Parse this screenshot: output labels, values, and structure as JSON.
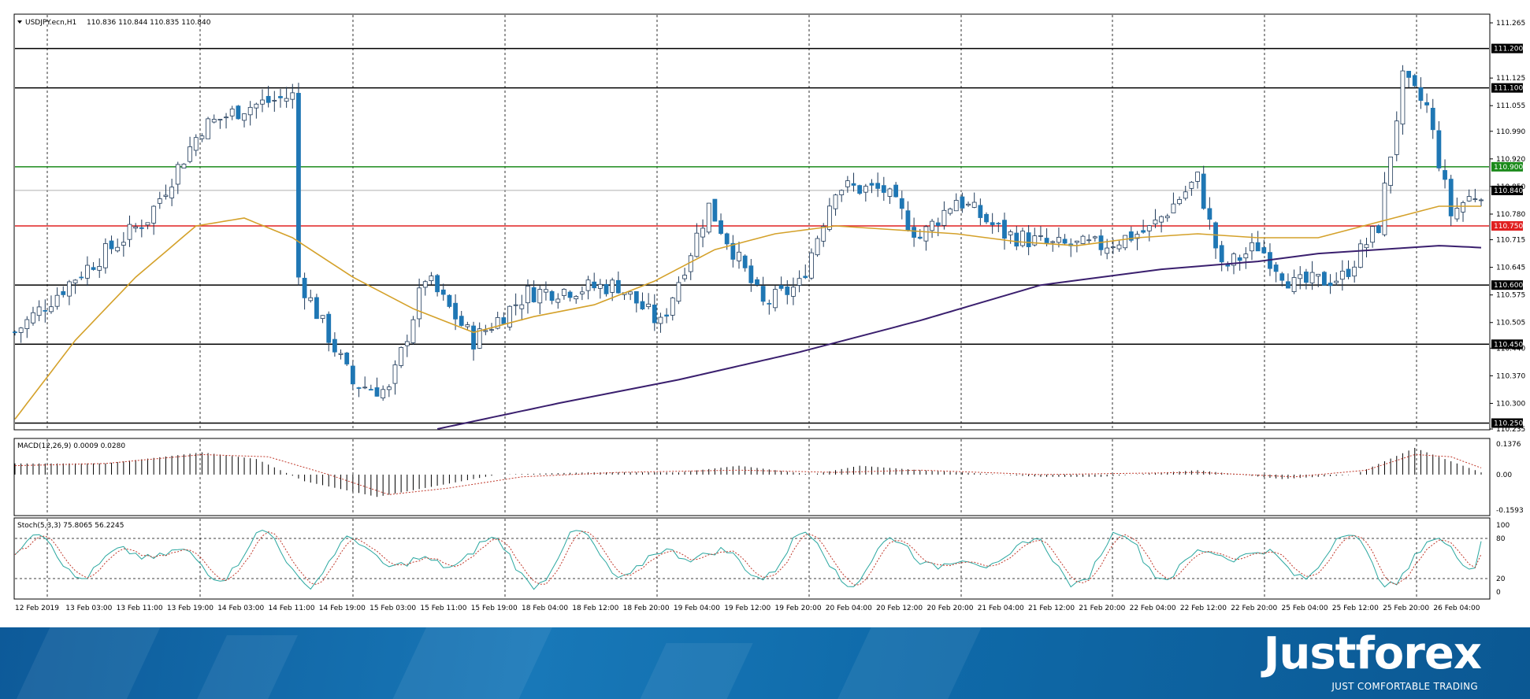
{
  "colors": {
    "bull_candle": "#1f77b4",
    "bear_candle": "#1f77b4",
    "ma_fast": "#d4a12a",
    "ma_slow": "#3a1f6e",
    "level_black": "#000000",
    "level_green": "#1a8a1a",
    "level_red": "#e02020",
    "current_price": "#b0b0b0",
    "stoch_main": "#2aa7a0",
    "stoch_signal": "#c0392b",
    "macd_signal": "#c0392b",
    "brand_background": "#1670b0"
  },
  "chart_header": {
    "symbol_label": "USDJPY.ecn,H1",
    "ohlc_label": "110.836 110.844 110.835 110.840"
  },
  "macd_header": "MACD(12,26,9) 0.0009 0.0280",
  "stoch_header": "Stoch(5,3,3) 75.8065 56.2245",
  "price_axis": {
    "ticks": [
      "111.265",
      "111.125",
      "111.055",
      "110.990",
      "110.920",
      "110.850",
      "110.780",
      "110.715",
      "110.645",
      "110.575",
      "110.505",
      "110.440",
      "110.370",
      "110.300",
      "110.235"
    ],
    "levels": [
      {
        "label": "111.200",
        "color": "black"
      },
      {
        "label": "111.100",
        "color": "black"
      },
      {
        "label": "110.900",
        "color": "green"
      },
      {
        "label": "110.840",
        "color": "current"
      },
      {
        "label": "110.750",
        "color": "red"
      },
      {
        "label": "110.600",
        "color": "black"
      },
      {
        "label": "110.450",
        "color": "black"
      },
      {
        "label": "110.250",
        "color": "black"
      }
    ]
  },
  "macd_axis": [
    "0.1376",
    "0.00",
    "-0.1593"
  ],
  "stoch_axis": [
    "100",
    "80",
    "20",
    "0"
  ],
  "time_axis": [
    "12 Feb 2019",
    "13 Feb 03:00",
    "13 Feb 11:00",
    "13 Feb 19:00",
    "14 Feb 03:00",
    "14 Feb 11:00",
    "14 Feb 19:00",
    "15 Feb 03:00",
    "15 Feb 11:00",
    "15 Feb 19:00",
    "18 Feb 04:00",
    "18 Feb 12:00",
    "18 Feb 20:00",
    "19 Feb 04:00",
    "19 Feb 12:00",
    "19 Feb 20:00",
    "20 Feb 04:00",
    "20 Feb 12:00",
    "20 Feb 20:00",
    "21 Feb 04:00",
    "21 Feb 12:00",
    "21 Feb 20:00",
    "22 Feb 04:00",
    "22 Feb 12:00",
    "22 Feb 20:00",
    "25 Feb 04:00",
    "25 Feb 12:00",
    "25 Feb 20:00",
    "26 Feb 04:00"
  ],
  "brand": {
    "name": "Justforex",
    "tagline": "JUST COMFORTABLE TRADING"
  },
  "chart_data": {
    "type": "candlestick",
    "symbol": "USDJPY",
    "timeframe": "H1",
    "ylim": [
      110.235,
      111.285
    ],
    "horizontal_levels": [
      111.2,
      111.1,
      110.9,
      110.75,
      110.6,
      110.45,
      110.25
    ],
    "current_price": 110.84,
    "price_anchors": [
      [
        0,
        110.48
      ],
      [
        10,
        110.62
      ],
      [
        22,
        110.77
      ],
      [
        31,
        111.0
      ],
      [
        38,
        111.05
      ],
      [
        46,
        111.08
      ],
      [
        47,
        110.62
      ],
      [
        56,
        110.35
      ],
      [
        62,
        110.33
      ],
      [
        68,
        110.62
      ],
      [
        76,
        110.46
      ],
      [
        85,
        110.58
      ],
      [
        100,
        110.6
      ],
      [
        107,
        110.5
      ],
      [
        115,
        110.8
      ],
      [
        124,
        110.55
      ],
      [
        130,
        110.6
      ],
      [
        136,
        110.85
      ],
      [
        144,
        110.84
      ],
      [
        150,
        110.72
      ],
      [
        156,
        110.82
      ],
      [
        164,
        110.73
      ],
      [
        172,
        110.7
      ],
      [
        180,
        110.7
      ],
      [
        188,
        110.74
      ],
      [
        196,
        110.87
      ],
      [
        200,
        110.64
      ],
      [
        206,
        110.7
      ],
      [
        212,
        110.6
      ],
      [
        220,
        110.62
      ],
      [
        226,
        110.75
      ],
      [
        230,
        111.12
      ],
      [
        234,
        111.05
      ],
      [
        238,
        110.78
      ],
      [
        240,
        110.81
      ],
      [
        243,
        110.84
      ]
    ],
    "ma_fast_anchors": [
      [
        0,
        110.26
      ],
      [
        10,
        110.46
      ],
      [
        20,
        110.62
      ],
      [
        30,
        110.75
      ],
      [
        38,
        110.77
      ],
      [
        46,
        110.72
      ],
      [
        56,
        110.62
      ],
      [
        66,
        110.54
      ],
      [
        76,
        110.48
      ],
      [
        86,
        110.52
      ],
      [
        96,
        110.55
      ],
      [
        106,
        110.61
      ],
      [
        116,
        110.69
      ],
      [
        126,
        110.73
      ],
      [
        136,
        110.75
      ],
      [
        146,
        110.74
      ],
      [
        156,
        110.73
      ],
      [
        166,
        110.71
      ],
      [
        176,
        110.7
      ],
      [
        186,
        110.72
      ],
      [
        196,
        110.73
      ],
      [
        206,
        110.72
      ],
      [
        216,
        110.72
      ],
      [
        226,
        110.76
      ],
      [
        236,
        110.8
      ],
      [
        243,
        110.8
      ]
    ],
    "ma_slow_anchors": [
      [
        70,
        110.235
      ],
      [
        90,
        110.3
      ],
      [
        110,
        110.36
      ],
      [
        130,
        110.43
      ],
      [
        150,
        110.51
      ],
      [
        170,
        110.6
      ],
      [
        190,
        110.64
      ],
      [
        206,
        110.66
      ],
      [
        216,
        110.68
      ],
      [
        226,
        110.69
      ],
      [
        236,
        110.7
      ],
      [
        243,
        110.695
      ]
    ],
    "macd_ylim": [
      -0.1593,
      0.1376
    ],
    "macd_anchors": [
      [
        0,
        0.05
      ],
      [
        15,
        0.05
      ],
      [
        31,
        0.1
      ],
      [
        40,
        0.07
      ],
      [
        48,
        -0.03
      ],
      [
        60,
        -0.1
      ],
      [
        70,
        -0.05
      ],
      [
        80,
        0.0
      ],
      [
        95,
        0.01
      ],
      [
        110,
        0.01
      ],
      [
        120,
        0.04
      ],
      [
        132,
        0.0
      ],
      [
        140,
        0.04
      ],
      [
        150,
        0.02
      ],
      [
        170,
        -0.01
      ],
      [
        180,
        -0.01
      ],
      [
        196,
        0.02
      ],
      [
        210,
        -0.02
      ],
      [
        222,
        0.0
      ],
      [
        232,
        0.12
      ],
      [
        238,
        0.06
      ],
      [
        243,
        0.01
      ]
    ],
    "macd_signal_anchors": [
      [
        0,
        0.04
      ],
      [
        15,
        0.05
      ],
      [
        31,
        0.09
      ],
      [
        42,
        0.08
      ],
      [
        52,
        0.0
      ],
      [
        62,
        -0.09
      ],
      [
        72,
        -0.06
      ],
      [
        84,
        -0.01
      ],
      [
        100,
        0.01
      ],
      [
        120,
        0.02
      ],
      [
        136,
        0.01
      ],
      [
        150,
        0.02
      ],
      [
        170,
        0.0
      ],
      [
        196,
        0.01
      ],
      [
        212,
        -0.01
      ],
      [
        224,
        0.02
      ],
      [
        232,
        0.09
      ],
      [
        238,
        0.08
      ],
      [
        243,
        0.03
      ]
    ],
    "stoch_ylim": [
      0,
      100
    ],
    "stoch_last": {
      "main": 75.8065,
      "signal": 56.2245
    }
  }
}
